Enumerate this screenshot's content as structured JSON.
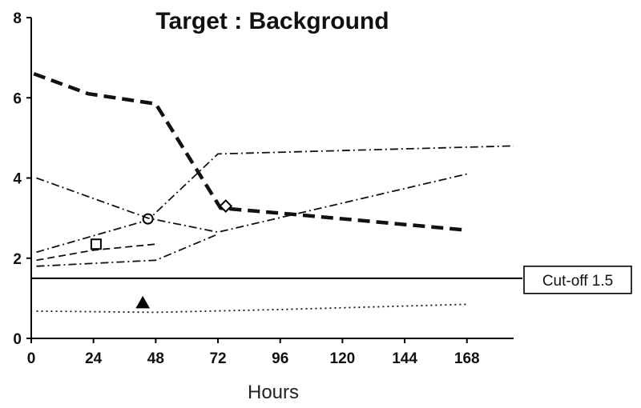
{
  "chart_data": {
    "type": "line",
    "title": "Target : Background",
    "xlabel": "Hours",
    "ylabel": "",
    "xlim": [
      0,
      186
    ],
    "ylim": [
      0,
      8
    ],
    "x_ticks": [
      0,
      24,
      48,
      72,
      96,
      120,
      144,
      168
    ],
    "y_ticks": [
      0,
      2,
      4,
      6,
      8
    ],
    "grid": false,
    "series": [
      {
        "line_style": "heavy-dashed",
        "marker": "diamond",
        "marker_at": [
          75,
          3.3
        ],
        "points": [
          [
            1,
            6.6
          ],
          [
            22,
            6.1
          ],
          [
            48,
            5.85
          ],
          [
            73,
            3.25
          ],
          [
            100,
            3.1
          ],
          [
            168,
            2.7
          ]
        ]
      },
      {
        "line_style": "dash-dot",
        "marker": "circle",
        "marker_at": [
          45,
          2.98
        ],
        "points": [
          [
            2,
            2.15
          ],
          [
            45,
            2.95
          ],
          [
            72,
            4.6
          ],
          [
            186,
            4.8
          ]
        ]
      },
      {
        "line_style": "dash-dot",
        "marker": "none",
        "points": [
          [
            2,
            4.0
          ],
          [
            45,
            3.0
          ],
          [
            72,
            2.65
          ],
          [
            168,
            4.1
          ]
        ]
      },
      {
        "line_style": "dash-dot",
        "marker": "none",
        "points": [
          [
            2,
            1.8
          ],
          [
            48,
            1.95
          ],
          [
            72,
            2.6
          ]
        ]
      },
      {
        "line_style": "dashed",
        "marker": "square",
        "marker_at": [
          25,
          2.35
        ],
        "points": [
          [
            2,
            1.95
          ],
          [
            24,
            2.2
          ],
          [
            48,
            2.35
          ]
        ]
      },
      {
        "line_style": "dotted",
        "marker": "triangle",
        "marker_at": [
          43,
          0.88
        ],
        "points": [
          [
            2,
            0.68
          ],
          [
            48,
            0.65
          ],
          [
            96,
            0.72
          ],
          [
            168,
            0.85
          ]
        ]
      }
    ],
    "reference_lines": [
      {
        "axis": "y",
        "value": 1.5,
        "label": "Cut-off 1.5"
      }
    ]
  }
}
